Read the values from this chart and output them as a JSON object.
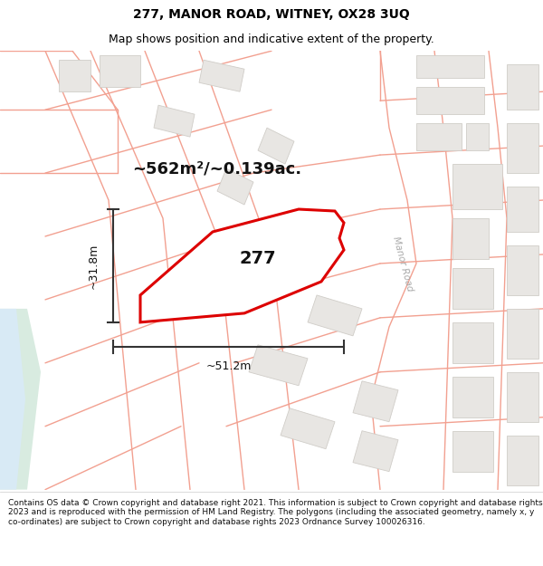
{
  "title": "277, MANOR ROAD, WITNEY, OX28 3UQ",
  "subtitle": "Map shows position and indicative extent of the property.",
  "area_text": "~562m²/~0.139ac.",
  "width_text": "~51.2m",
  "height_text": "~31.8m",
  "property_number": "277",
  "footer": "Contains OS data © Crown copyright and database right 2021. This information is subject to Crown copyright and database rights 2023 and is reproduced with the permission of HM Land Registry. The polygons (including the associated geometry, namely x, y co-ordinates) are subject to Crown copyright and database rights 2023 Ordnance Survey 100026316.",
  "map_bg": "#ffffff",
  "road_color": "#f2a090",
  "building_fill": "#e8e6e3",
  "building_stroke": "#d0cdc8",
  "property_stroke": "#dd0000",
  "property_fill": "#ffffff",
  "green_fill": "#d8ebe0",
  "blue_fill": "#d8eaf5",
  "title_fontsize": 10,
  "subtitle_fontsize": 9,
  "area_fontsize": 13,
  "footer_fontsize": 6.5,
  "road_lw": 1.0,
  "property_lw": 2.2,
  "road_label_color": "#aaaaaa"
}
